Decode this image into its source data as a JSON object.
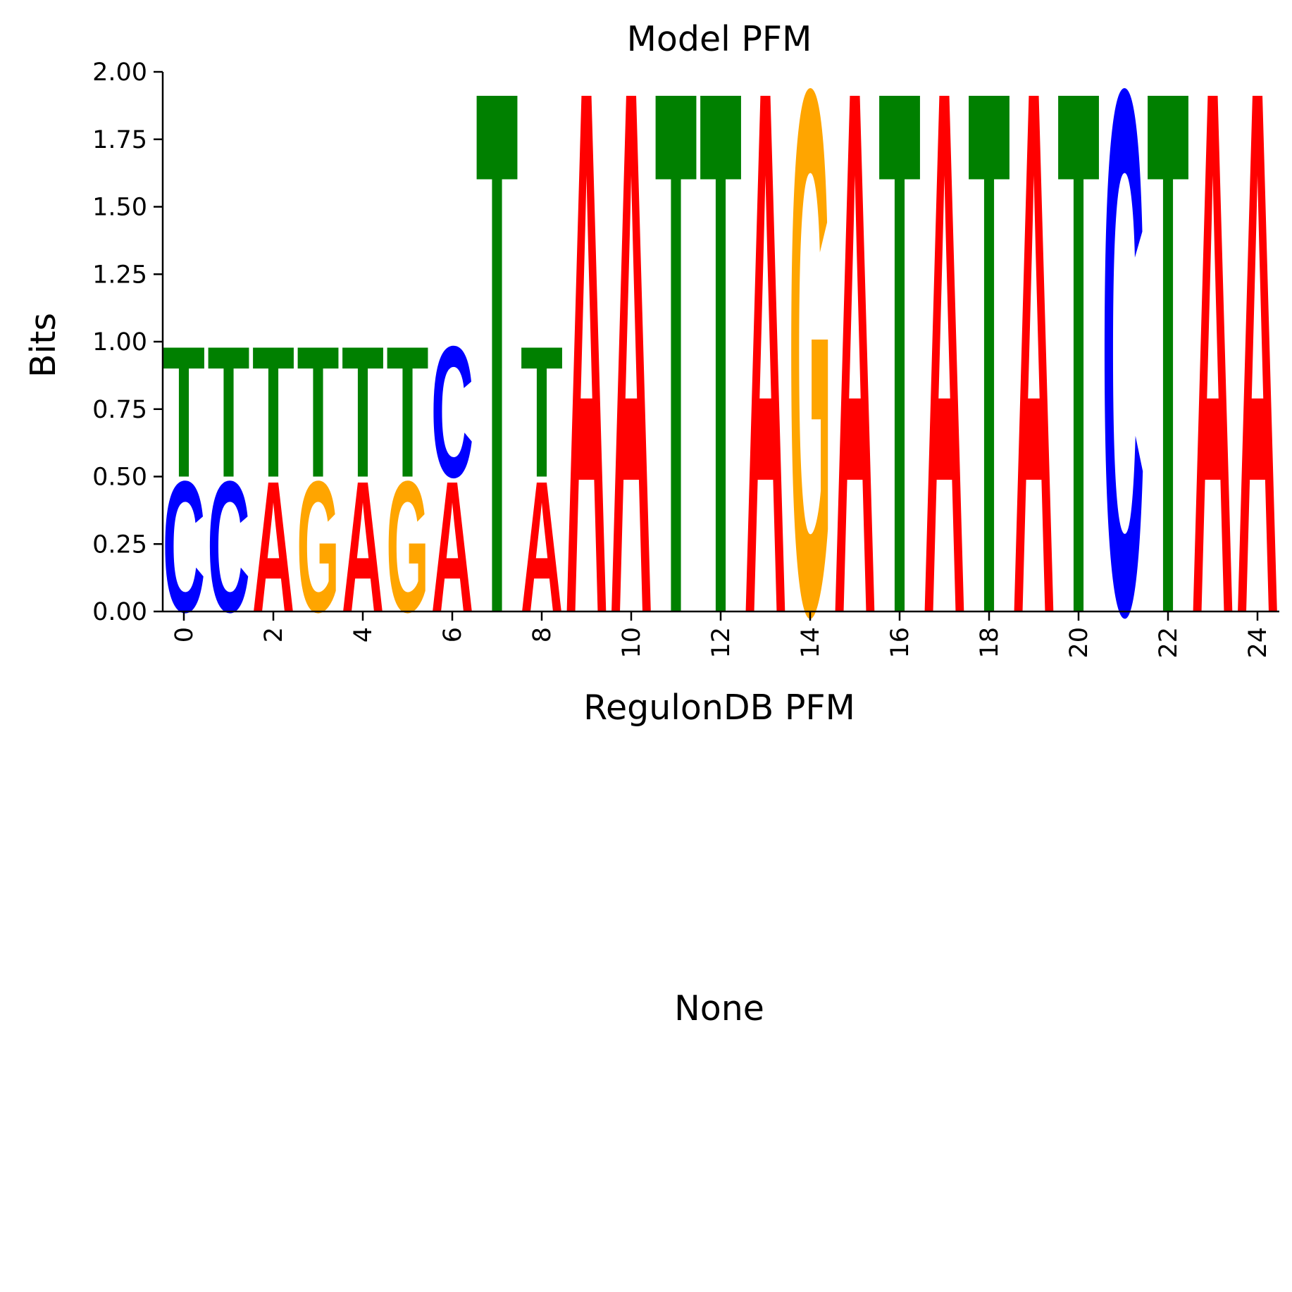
{
  "figure": {
    "panel_note": "None"
  },
  "chart_data": {
    "type": "sequence-logo",
    "title": "Model PFM",
    "xlabel": "RegulonDB PFM",
    "ylabel": "Bits",
    "ylim": [
      0,
      2
    ],
    "yticks": [
      "0.00",
      "0.25",
      "0.50",
      "0.75",
      "1.00",
      "1.25",
      "1.50",
      "1.75",
      "2.00"
    ],
    "xticks": [
      "0",
      "2",
      "4",
      "6",
      "8",
      "10",
      "12",
      "14",
      "16",
      "18",
      "20",
      "22",
      "24"
    ],
    "grid": false,
    "colors": {
      "A": "#ff0000",
      "C": "#0000ff",
      "G": "#ffa500",
      "T": "#008000"
    },
    "positions": [
      {
        "pos": 0,
        "stack": [
          [
            "C",
            0.5
          ],
          [
            "T",
            0.5
          ]
        ]
      },
      {
        "pos": 1,
        "stack": [
          [
            "C",
            0.5
          ],
          [
            "T",
            0.5
          ]
        ]
      },
      {
        "pos": 2,
        "stack": [
          [
            "A",
            0.5
          ],
          [
            "T",
            0.5
          ]
        ]
      },
      {
        "pos": 3,
        "stack": [
          [
            "G",
            0.5
          ],
          [
            "T",
            0.5
          ]
        ]
      },
      {
        "pos": 4,
        "stack": [
          [
            "A",
            0.5
          ],
          [
            "T",
            0.5
          ]
        ]
      },
      {
        "pos": 5,
        "stack": [
          [
            "G",
            0.5
          ],
          [
            "T",
            0.5
          ]
        ]
      },
      {
        "pos": 6,
        "stack": [
          [
            "A",
            0.5
          ],
          [
            "C",
            0.5
          ]
        ]
      },
      {
        "pos": 7,
        "stack": [
          [
            "T",
            2.0
          ]
        ]
      },
      {
        "pos": 8,
        "stack": [
          [
            "A",
            0.5
          ],
          [
            "T",
            0.5
          ]
        ]
      },
      {
        "pos": 9,
        "stack": [
          [
            "A",
            2.0
          ]
        ]
      },
      {
        "pos": 10,
        "stack": [
          [
            "A",
            2.0
          ]
        ]
      },
      {
        "pos": 11,
        "stack": [
          [
            "T",
            2.0
          ]
        ]
      },
      {
        "pos": 12,
        "stack": [
          [
            "T",
            2.0
          ]
        ]
      },
      {
        "pos": 13,
        "stack": [
          [
            "A",
            2.0
          ]
        ]
      },
      {
        "pos": 14,
        "stack": [
          [
            "G",
            2.0
          ]
        ]
      },
      {
        "pos": 15,
        "stack": [
          [
            "A",
            2.0
          ]
        ]
      },
      {
        "pos": 16,
        "stack": [
          [
            "T",
            2.0
          ]
        ]
      },
      {
        "pos": 17,
        "stack": [
          [
            "A",
            2.0
          ]
        ]
      },
      {
        "pos": 18,
        "stack": [
          [
            "T",
            2.0
          ]
        ]
      },
      {
        "pos": 19,
        "stack": [
          [
            "A",
            2.0
          ]
        ]
      },
      {
        "pos": 20,
        "stack": [
          [
            "T",
            2.0
          ]
        ]
      },
      {
        "pos": 21,
        "stack": [
          [
            "C",
            2.0
          ]
        ]
      },
      {
        "pos": 22,
        "stack": [
          [
            "T",
            2.0
          ]
        ]
      },
      {
        "pos": 23,
        "stack": [
          [
            "A",
            2.0
          ]
        ]
      },
      {
        "pos": 24,
        "stack": [
          [
            "A",
            2.0
          ]
        ]
      }
    ]
  }
}
